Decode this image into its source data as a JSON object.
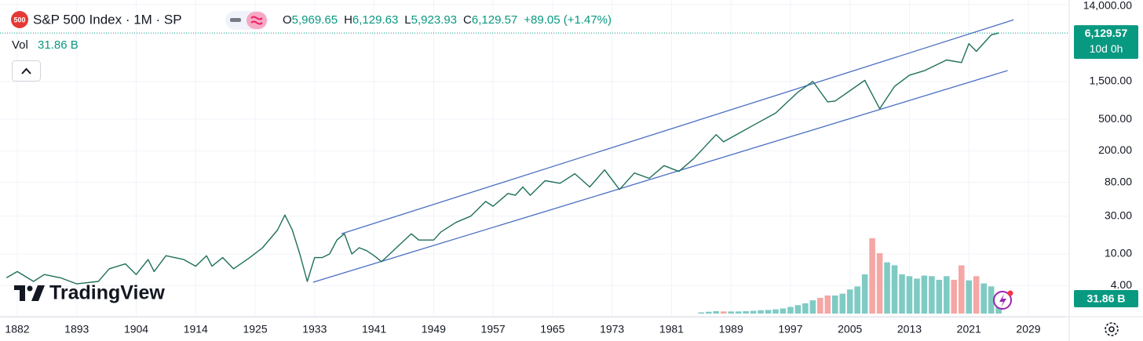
{
  "header": {
    "symbol_badge": "500",
    "title": "S&P 500 Index · 1M · SP",
    "ohlc": [
      {
        "key": "O",
        "value": "5,969.65"
      },
      {
        "key": "H",
        "value": "6,129.63"
      },
      {
        "key": "L",
        "value": "5,923.93"
      },
      {
        "key": "C",
        "value": "6,129.57"
      }
    ],
    "change": "+89.05 (+1.47%)",
    "volume_label": "Vol",
    "volume_value": "31.86 B"
  },
  "price_badge": {
    "value": "6,129.57",
    "countdown": "10d 0h"
  },
  "volume_badge": "31.86 B",
  "logo": "TradingView",
  "chart_data": {
    "type": "line",
    "log_scale": true,
    "grid": true,
    "color": "#1f6f5a",
    "x": [
      1880,
      1882,
      1885,
      1887,
      1890,
      1893,
      1897,
      1899,
      1902,
      1904,
      1906,
      1907,
      1909,
      1912,
      1914,
      1916,
      1917,
      1919,
      1921,
      1924,
      1926,
      1928,
      1929,
      1930,
      1931,
      1932,
      1933,
      1934,
      1935,
      1936,
      1937,
      1938,
      1939,
      1940,
      1941,
      1942,
      1944,
      1946,
      1947,
      1949,
      1950,
      1952,
      1954,
      1956,
      1957,
      1959,
      1960,
      1961,
      1962,
      1964,
      1966,
      1968,
      1970,
      1972,
      1974,
      1976,
      1978,
      1980,
      1982,
      1984,
      1987,
      1988,
      1990,
      1992,
      1995,
      1998,
      2000,
      2002,
      2003,
      2007,
      2009,
      2011,
      2013,
      2015,
      2018,
      2020,
      2021,
      2022,
      2024,
      2025
    ],
    "values": [
      5,
      6,
      4.5,
      5.5,
      5,
      4.2,
      4.5,
      6.5,
      7.5,
      5.5,
      8.5,
      6,
      9.5,
      8.5,
      7,
      9.5,
      7,
      9,
      6.5,
      9,
      12,
      20,
      31,
      20,
      10,
      4.5,
      9,
      9,
      10,
      15,
      18,
      10,
      12,
      11,
      9.5,
      8,
      12,
      18,
      15,
      15,
      19,
      25,
      30,
      46,
      40,
      58,
      55,
      70,
      55,
      84,
      78,
      103,
      70,
      115,
      65,
      105,
      90,
      130,
      110,
      160,
      320,
      260,
      330,
      420,
      600,
      1100,
      1500,
      830,
      850,
      1550,
      680,
      1300,
      1800,
      2050,
      2800,
      2600,
      4500,
      3600,
      5800,
      6129.57
    ],
    "xlim": [
      1879,
      2034
    ],
    "xticks": [
      1882,
      1893,
      1904,
      1914,
      1925,
      1933,
      1941,
      1949,
      1957,
      1965,
      1973,
      1981,
      1989,
      1997,
      2005,
      2013,
      2021,
      2029
    ],
    "ylim": [
      1.77,
      16000
    ],
    "yticks": [
      {
        "value": 4,
        "label": "4.00"
      },
      {
        "value": 10,
        "label": "10.00"
      },
      {
        "value": 30,
        "label": "30.00"
      },
      {
        "value": 80,
        "label": "80.00"
      },
      {
        "value": 200,
        "label": "200.00"
      },
      {
        "value": 500,
        "label": "500.00"
      },
      {
        "value": 1500,
        "label": "1,500.00"
      },
      {
        "value": 14000,
        "label": "14,000.00"
      }
    ],
    "volume": {
      "x": [
        1985,
        1986,
        1987,
        1988,
        1989,
        1990,
        1991,
        1992,
        1993,
        1994,
        1995,
        1996,
        1997,
        1998,
        1999,
        2000,
        2001,
        2002,
        2003,
        2004,
        2005,
        2006,
        2007,
        2008,
        2009,
        2010,
        2011,
        2012,
        2013,
        2014,
        2015,
        2016,
        2017,
        2018,
        2019,
        2020,
        2021,
        2022,
        2023,
        2024,
        2025
      ],
      "values": [
        2,
        3,
        4,
        3.5,
        3.5,
        3.5,
        4,
        4.5,
        5.5,
        6,
        7,
        8.5,
        11,
        14,
        17,
        22,
        26,
        30,
        30,
        33,
        40,
        45,
        65,
        125,
        100,
        85,
        80,
        65,
        62,
        58,
        63,
        62,
        56,
        62,
        56,
        80,
        55,
        62,
        50,
        45,
        31.86
      ],
      "ylim": [
        0,
        130
      ],
      "up_color": "#7fcbc4",
      "down_color": "#f4a7a5"
    },
    "channel": {
      "color": "#4a6fc1",
      "upper": {
        "x": [
          1936.6,
          2027
        ],
        "y": [
          18,
          9000
        ]
      },
      "lower": {
        "x": [
          1932.8,
          2026.2
        ],
        "y": [
          4.4,
          2060
        ]
      }
    }
  }
}
